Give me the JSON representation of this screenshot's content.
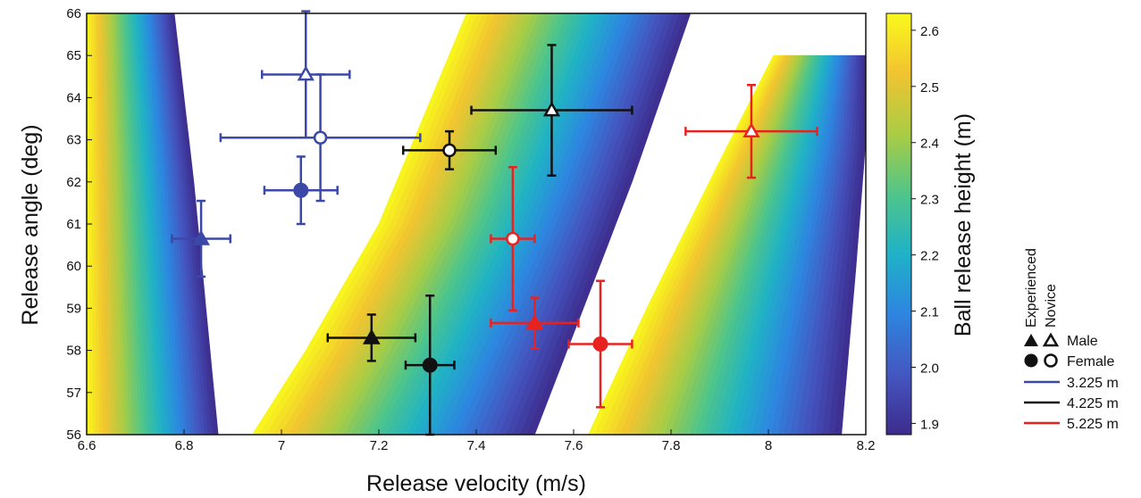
{
  "chart_data": {
    "type": "scatter",
    "xlabel": "Release velocity (m/s)",
    "ylabel": "Release angle (deg)",
    "xlim": [
      6.6,
      8.2
    ],
    "ylim": [
      56,
      66
    ],
    "xticks": [
      "6.6",
      "6.8",
      "7",
      "7.2",
      "7.4",
      "7.6",
      "7.8",
      "8",
      "8.2"
    ],
    "yticks": [
      "56",
      "57",
      "58",
      "59",
      "60",
      "61",
      "62",
      "63",
      "64",
      "65",
      "66"
    ],
    "colorbar": {
      "label": "Ball release height (m)",
      "range": [
        1.88,
        2.63
      ],
      "ticks": [
        "1.9",
        "2.0",
        "2.1",
        "2.2",
        "2.3",
        "2.4",
        "2.5",
        "2.6"
      ],
      "colormap": [
        "#3d2b8c",
        "#4456c0",
        "#2d86e0",
        "#1fb2c7",
        "#4fc58a",
        "#a8cc45",
        "#f2c430",
        "#f9f91c"
      ]
    },
    "bands": [
      {
        "distance": "3.225 m",
        "v_low_at_56": 6.6,
        "v_high_at_56": 6.87,
        "v_low_at_66": 6.6,
        "v_high_at_66": 6.78,
        "v_low_at_top": 6.6
      },
      {
        "distance": "4.225 m",
        "v_low_at_56": 6.94,
        "v_high_at_56": 7.52,
        "v_low_at_66": 7.38,
        "v_high_at_66": 7.84
      },
      {
        "distance": "5.225 m",
        "v_low_at_56": 7.63,
        "v_high_at_56": 8.15,
        "v_low_at_65": 8.01,
        "v_high_at_65": 8.2
      }
    ],
    "points": [
      {
        "group": "3.225 m",
        "color": "#3c48a8",
        "shape": "triangle",
        "fill": "filled",
        "x": 6.835,
        "y": 60.65,
        "xerr": 0.06,
        "yerr": 0.9
      },
      {
        "group": "3.225 m",
        "color": "#3c48a8",
        "shape": "circle",
        "fill": "filled",
        "x": 7.04,
        "y": 61.8,
        "xerr": 0.075,
        "yerr": 0.8
      },
      {
        "group": "3.225 m",
        "color": "#3c48a8",
        "shape": "triangle",
        "fill": "open",
        "x": 7.05,
        "y": 64.55,
        "xerr": 0.09,
        "yerr": 1.5
      },
      {
        "group": "3.225 m",
        "color": "#3c48a8",
        "shape": "circle",
        "fill": "open",
        "x": 7.08,
        "y": 63.05,
        "xerr": 0.205,
        "yerr": 1.5
      },
      {
        "group": "4.225 m",
        "color": "#111111",
        "shape": "triangle",
        "fill": "filled",
        "x": 7.185,
        "y": 58.3,
        "xerr": 0.09,
        "yerr": 0.55
      },
      {
        "group": "4.225 m",
        "color": "#111111",
        "shape": "circle",
        "fill": "filled",
        "x": 7.305,
        "y": 57.65,
        "xerr": 0.05,
        "yerr": 1.65
      },
      {
        "group": "4.225 m",
        "color": "#111111",
        "shape": "circle",
        "fill": "open",
        "x": 7.345,
        "y": 62.75,
        "xerr": 0.095,
        "yerr": 0.45
      },
      {
        "group": "4.225 m",
        "color": "#111111",
        "shape": "triangle",
        "fill": "open",
        "x": 7.555,
        "y": 63.7,
        "xerr": 0.165,
        "yerr": 1.55
      },
      {
        "group": "5.225 m",
        "color": "#e8231f",
        "shape": "circle",
        "fill": "open",
        "x": 7.475,
        "y": 60.65,
        "xerr": 0.045,
        "yerr": 1.7
      },
      {
        "group": "5.225 m",
        "color": "#e8231f",
        "shape": "triangle",
        "fill": "filled",
        "x": 7.52,
        "y": 58.65,
        "xerr": 0.09,
        "yerr": 0.6
      },
      {
        "group": "5.225 m",
        "color": "#e8231f",
        "shape": "circle",
        "fill": "filled",
        "x": 7.655,
        "y": 58.15,
        "xerr": 0.065,
        "yerr": 1.5
      },
      {
        "group": "5.225 m",
        "color": "#e8231f",
        "shape": "triangle",
        "fill": "open",
        "x": 7.965,
        "y": 63.2,
        "xerr": 0.135,
        "yerr": 1.1
      }
    ]
  },
  "legend": {
    "experienced": "Experienced",
    "novice": "Novice",
    "male": "Male",
    "female": "Female",
    "lines": [
      {
        "label": "3.225 m",
        "color": "#3c48a8"
      },
      {
        "label": "4.225 m",
        "color": "#111111"
      },
      {
        "label": "5.225 m",
        "color": "#e8231f"
      }
    ]
  }
}
